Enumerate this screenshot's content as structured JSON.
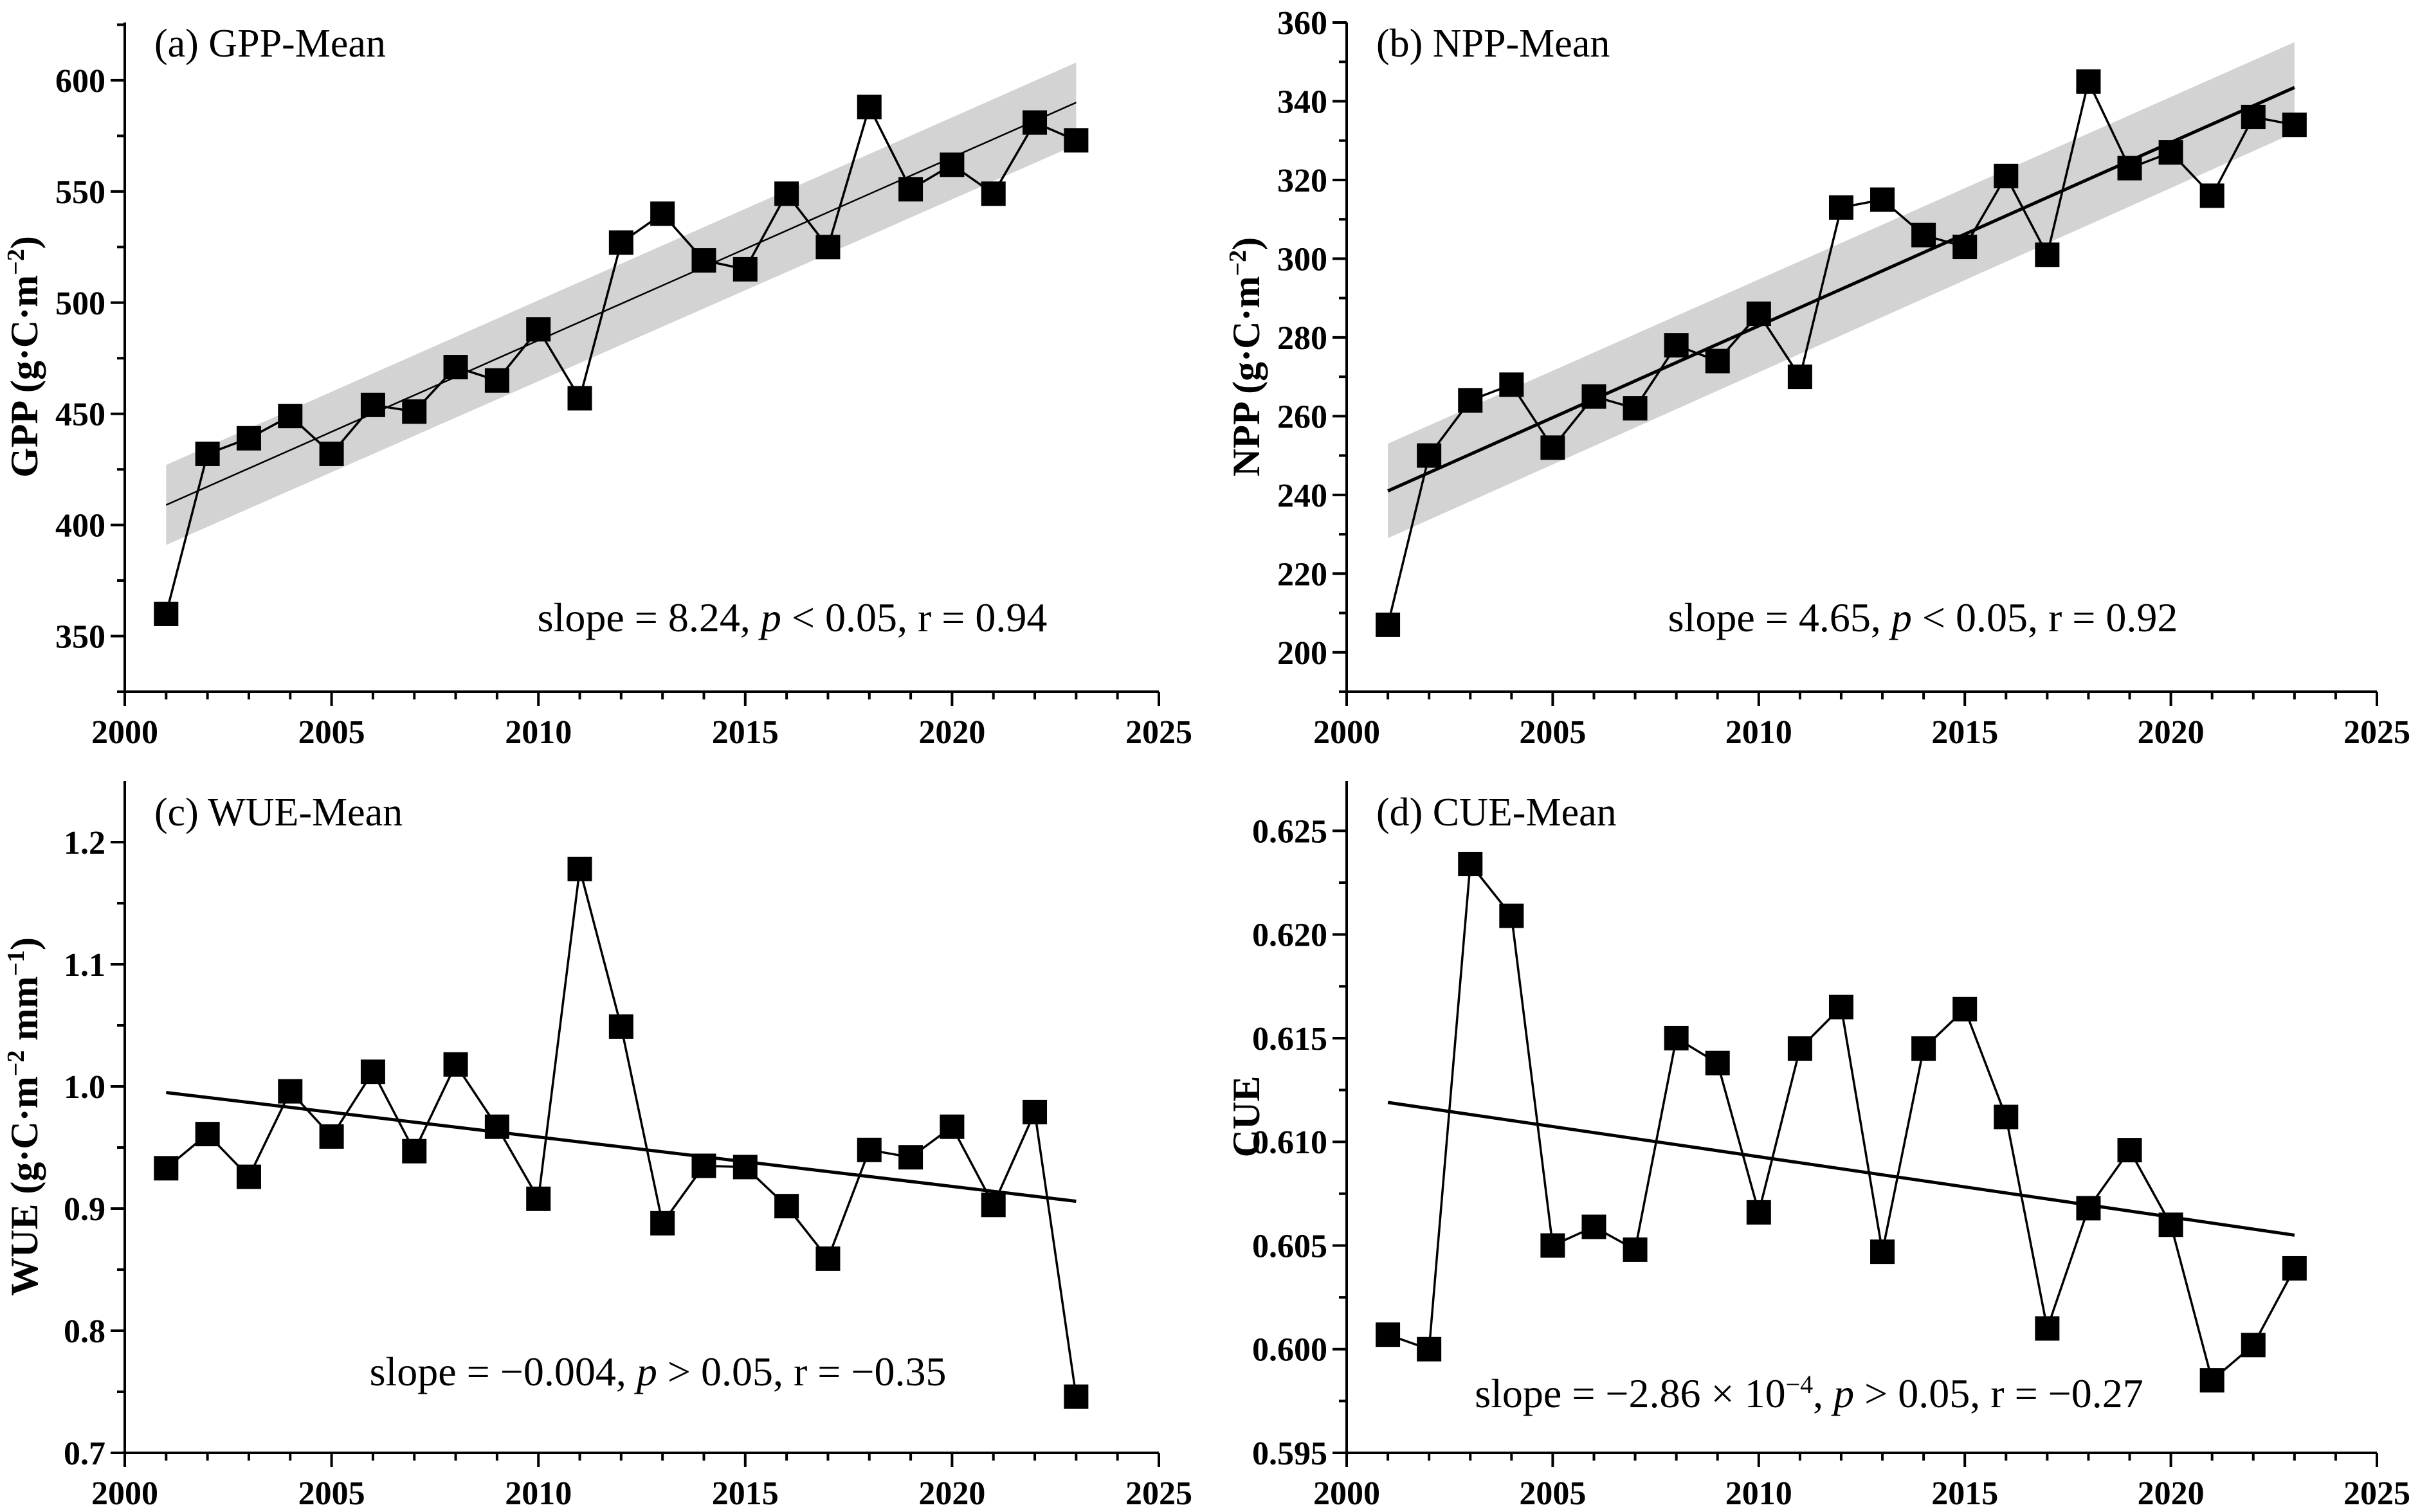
{
  "chart_data": [
    {
      "type": "line",
      "title": "(a) GPP-Mean",
      "ylabel": [
        {
          "t": "GPP (g·C·m"
        },
        {
          "t": "−2",
          "sup": true
        },
        {
          "t": ")"
        }
      ],
      "xlabel": "",
      "x": [
        2001,
        2002,
        2003,
        2004,
        2005,
        2006,
        2007,
        2008,
        2009,
        2010,
        2011,
        2012,
        2013,
        2014,
        2015,
        2016,
        2017,
        2018,
        2019,
        2020,
        2021,
        2022,
        2023
      ],
      "values": [
        360,
        432,
        439,
        449,
        432,
        454,
        451,
        471,
        465,
        488,
        457,
        527,
        540,
        519,
        515,
        549,
        525,
        588,
        551,
        562,
        549,
        581,
        573
      ],
      "trend": {
        "x": [
          2001,
          2023
        ],
        "y": [
          409,
          590
        ]
      },
      "confidence_band": {
        "x": [
          2001,
          2023
        ],
        "lower": [
          391,
          571
        ],
        "upper": [
          427,
          608
        ]
      },
      "xlim": [
        2000,
        2025
      ],
      "ylim": [
        325,
        626
      ],
      "xticks": [
        2000,
        2005,
        2010,
        2015,
        2020,
        2025
      ],
      "yticks": [
        350,
        400,
        450,
        500,
        550,
        600
      ],
      "annotation": [
        {
          "t": "slope = 8.24, "
        },
        {
          "t": "p",
          "i": true
        },
        {
          "t": " < 0.05, r = 0.94"
        }
      ],
      "grid": false
    },
    {
      "type": "line",
      "title": "(b) NPP-Mean",
      "ylabel": [
        {
          "t": "NPP (g·C·m"
        },
        {
          "t": "−2",
          "sup": true
        },
        {
          "t": ")"
        }
      ],
      "xlabel": "",
      "x": [
        2001,
        2002,
        2003,
        2004,
        2005,
        2006,
        2007,
        2008,
        2009,
        2010,
        2011,
        2012,
        2013,
        2014,
        2015,
        2016,
        2017,
        2018,
        2019,
        2020,
        2021,
        2022,
        2023
      ],
      "values": [
        207,
        250,
        264,
        268,
        252,
        265,
        262,
        278,
        274,
        286,
        270,
        313,
        315,
        306,
        303,
        321,
        301,
        345,
        323,
        327,
        316,
        336,
        334
      ],
      "trend": {
        "x": [
          2001,
          2023
        ],
        "y": [
          241,
          343.5
        ]
      },
      "confidence_band": {
        "x": [
          2001,
          2023
        ],
        "lower": [
          229,
          332
        ],
        "upper": [
          253,
          355
        ]
      },
      "xlim": [
        2000,
        2025
      ],
      "ylim": [
        190,
        360
      ],
      "xticks": [
        2000,
        2005,
        2010,
        2015,
        2020,
        2025
      ],
      "yticks": [
        200,
        220,
        240,
        260,
        280,
        300,
        320,
        340,
        360
      ],
      "annotation": [
        {
          "t": "slope = 4.65, "
        },
        {
          "t": "p",
          "i": true
        },
        {
          "t": " < 0.05, r = 0.92"
        }
      ],
      "grid": false
    },
    {
      "type": "line",
      "title": "(c) WUE-Mean",
      "ylabel": [
        {
          "t": "WUE (g·C·m"
        },
        {
          "t": "−2",
          "sup": true
        },
        {
          "t": " mm"
        },
        {
          "t": "−1",
          "sup": true
        },
        {
          "t": ")"
        }
      ],
      "xlabel": "",
      "x": [
        2001,
        2002,
        2003,
        2004,
        2005,
        2006,
        2007,
        2008,
        2009,
        2010,
        2011,
        2012,
        2013,
        2014,
        2015,
        2016,
        2017,
        2018,
        2019,
        2020,
        2021,
        2022,
        2023
      ],
      "values": [
        0.933,
        0.961,
        0.926,
        0.996,
        0.959,
        1.012,
        0.947,
        1.018,
        0.967,
        0.908,
        1.178,
        1.049,
        0.888,
        0.935,
        0.934,
        0.902,
        0.859,
        0.948,
        0.942,
        0.967,
        0.903,
        0.979,
        0.746
      ],
      "trend": {
        "x": [
          2001,
          2023
        ],
        "y": [
          0.995,
          0.906
        ]
      },
      "xlim": [
        2000,
        2025
      ],
      "ylim": [
        0.7,
        1.25
      ],
      "xticks": [
        2000,
        2005,
        2010,
        2015,
        2020,
        2025
      ],
      "yticks": [
        "0.7",
        "0.8",
        "0.9",
        "1.0",
        "1.1",
        "1.2"
      ],
      "annotation": [
        {
          "t": "slope = −0.004, "
        },
        {
          "t": "p",
          "i": true
        },
        {
          "t": " > 0.05, r = −0.35"
        }
      ],
      "grid": false
    },
    {
      "type": "line",
      "title": "(d) CUE-Mean",
      "ylabel": [
        {
          "t": "CUE"
        }
      ],
      "xlabel": "",
      "x": [
        2001,
        2002,
        2003,
        2004,
        2005,
        2006,
        2007,
        2008,
        2009,
        2010,
        2011,
        2012,
        2013,
        2014,
        2015,
        2016,
        2017,
        2018,
        2019,
        2020,
        2021,
        2022,
        2023
      ],
      "values": [
        0.6007,
        0.6,
        0.6234,
        0.6209,
        0.605,
        0.6059,
        0.6048,
        0.615,
        0.6138,
        0.6066,
        0.6145,
        0.6165,
        0.6047,
        0.6145,
        0.6164,
        0.6112,
        0.601,
        0.6068,
        0.6096,
        0.606,
        0.5985,
        0.6002,
        0.6039
      ],
      "trend": {
        "x": [
          2001,
          2023
        ],
        "y": [
          0.6119,
          0.6055
        ]
      },
      "xlim": [
        2000,
        2025
      ],
      "ylim": [
        0.595,
        0.6274
      ],
      "xticks": [
        2000,
        2005,
        2010,
        2015,
        2020,
        2025
      ],
      "yticks": [
        "0.595",
        "0.600",
        "0.605",
        "0.610",
        "0.615",
        "0.620",
        "0.625"
      ],
      "annotation": [
        {
          "t": "slope = −2.86 × 10"
        },
        {
          "t": "−4",
          "sup": true
        },
        {
          "t": ", "
        },
        {
          "t": "p",
          "i": true
        },
        {
          "t": " > 0.05, r = −0.27"
        }
      ],
      "grid": false
    }
  ],
  "colors": {
    "line": "#000000",
    "band": "#d3d3d3",
    "marker": "#000000"
  }
}
